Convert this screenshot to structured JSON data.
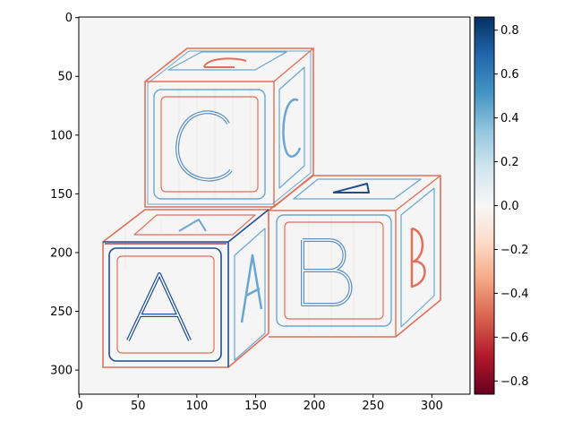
{
  "chart_data": {
    "type": "heatmap",
    "title": "",
    "xlabel": "",
    "ylabel": "",
    "image_size": {
      "width": 332,
      "height": 320
    },
    "xlim": [
      -0.5,
      332.5
    ],
    "ylim": [
      320.5,
      -0.5
    ],
    "xticks": [
      0,
      50,
      100,
      150,
      200,
      250,
      300
    ],
    "yticks": [
      0,
      50,
      100,
      150,
      200,
      250,
      300
    ],
    "colormap": "RdBu",
    "vmin": -0.86,
    "vmax": 0.86,
    "colorbar_ticks": [
      0.8,
      0.6,
      0.4,
      0.2,
      0.0,
      -0.2,
      -0.4,
      -0.6,
      -0.8
    ],
    "colorbar_labels": [
      "0.8",
      "0.6",
      "0.4",
      "0.2",
      "0.0",
      "−0.2",
      "−0.4",
      "−0.6",
      "−0.8"
    ],
    "description_letters": [
      "C",
      "A",
      "B"
    ],
    "colors": {
      "background": "#f5f5f5",
      "edge_red": "#e0705a",
      "edge_blue": "#6aa6d0",
      "edge_darkblue": "#1f4e8c",
      "edge_darkred": "#a3162c"
    }
  }
}
